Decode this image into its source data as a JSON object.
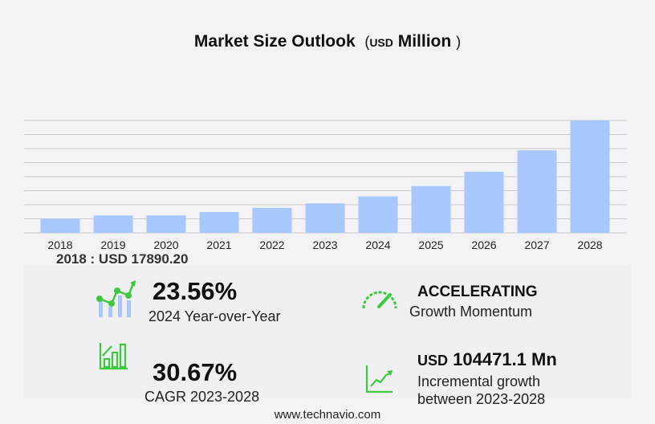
{
  "title": {
    "main": "Market Size Outlook",
    "open": "(",
    "unit": "USD",
    "unit_word": "Million",
    "close": ")"
  },
  "chart_data": {
    "type": "bar",
    "title": "Market Size Outlook (USD Million)",
    "categories": [
      "2018",
      "2019",
      "2020",
      "2021",
      "2022",
      "2023",
      "2024",
      "2025",
      "2026",
      "2027",
      "2028"
    ],
    "values": [
      17890.2,
      22000,
      22000,
      26300,
      31500,
      37178,
      45937,
      59000,
      77000,
      104000,
      141649
    ],
    "ylim": [
      0,
      141649
    ],
    "grid": true,
    "bar_color": "#a8c8fd",
    "grid_color": "#c8c8cc"
  },
  "base_label": "2018 : USD  17890.20",
  "kpis": {
    "yoy": {
      "value": "23.56%",
      "label": "2024 Year-over-Year",
      "icon": "growth-chart-icon"
    },
    "momentum": {
      "value": "ACCELERATING",
      "label": "Growth Momentum",
      "icon": "speedometer-icon"
    },
    "cagr": {
      "value": "30.67%",
      "label": "CAGR 2023-2028",
      "icon": "bar-growth-icon"
    },
    "incremental": {
      "unit": "USD",
      "value": "104471.1 Mn",
      "label1": "Incremental growth",
      "label2": "between 2023-2028",
      "icon": "line-trend-icon"
    }
  },
  "accent": "#3dc93d",
  "footer": "www.technavio.com"
}
